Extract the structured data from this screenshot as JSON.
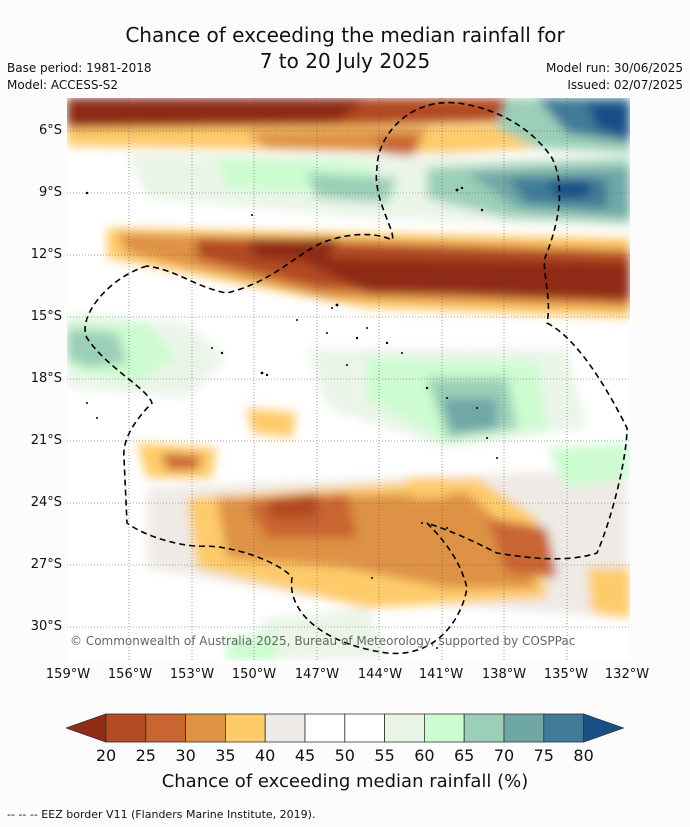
{
  "title_line1": "Chance of exceeding the median rainfall for",
  "title_line2": "7 to 20 July 2025",
  "base_period": "Base period: 1981-2018",
  "model": "Model: ACCESS-S2",
  "model_run": "Model run: 30/06/2025",
  "issued": "Issued: 02/07/2025",
  "lat_labels": [
    "6°S",
    "9°S",
    "12°S",
    "15°S",
    "18°S",
    "21°S",
    "24°S",
    "27°S",
    "30°S"
  ],
  "lon_labels": [
    "159°W",
    "156°W",
    "153°W",
    "150°W",
    "147°W",
    "144°W",
    "141°W",
    "138°W",
    "135°W",
    "132°W"
  ],
  "colorbar_ticks": [
    "20",
    "25",
    "30",
    "35",
    "40",
    "45",
    "50",
    "55",
    "60",
    "65",
    "70",
    "75",
    "80"
  ],
  "colorbar_colors": [
    "#8e2c15",
    "#b24a22",
    "#c96530",
    "#de9244",
    "#fecb6b",
    "#efeae6",
    "#ffffff",
    "#ffffff",
    "#eaf5e8",
    "#ccfcd0",
    "#9ccfb8",
    "#6fa7a7",
    "#407b98",
    "#174f86"
  ],
  "colorbar_title": "Chance of exceeding median rainfall (%)",
  "copyright": "© Commonwealth of Australia 2025, Bureau of Meteorology, supported by COSPPac",
  "eez_legend": "--  --  -- EEZ border V11 (Flanders Marine Institute, 2019)."
}
